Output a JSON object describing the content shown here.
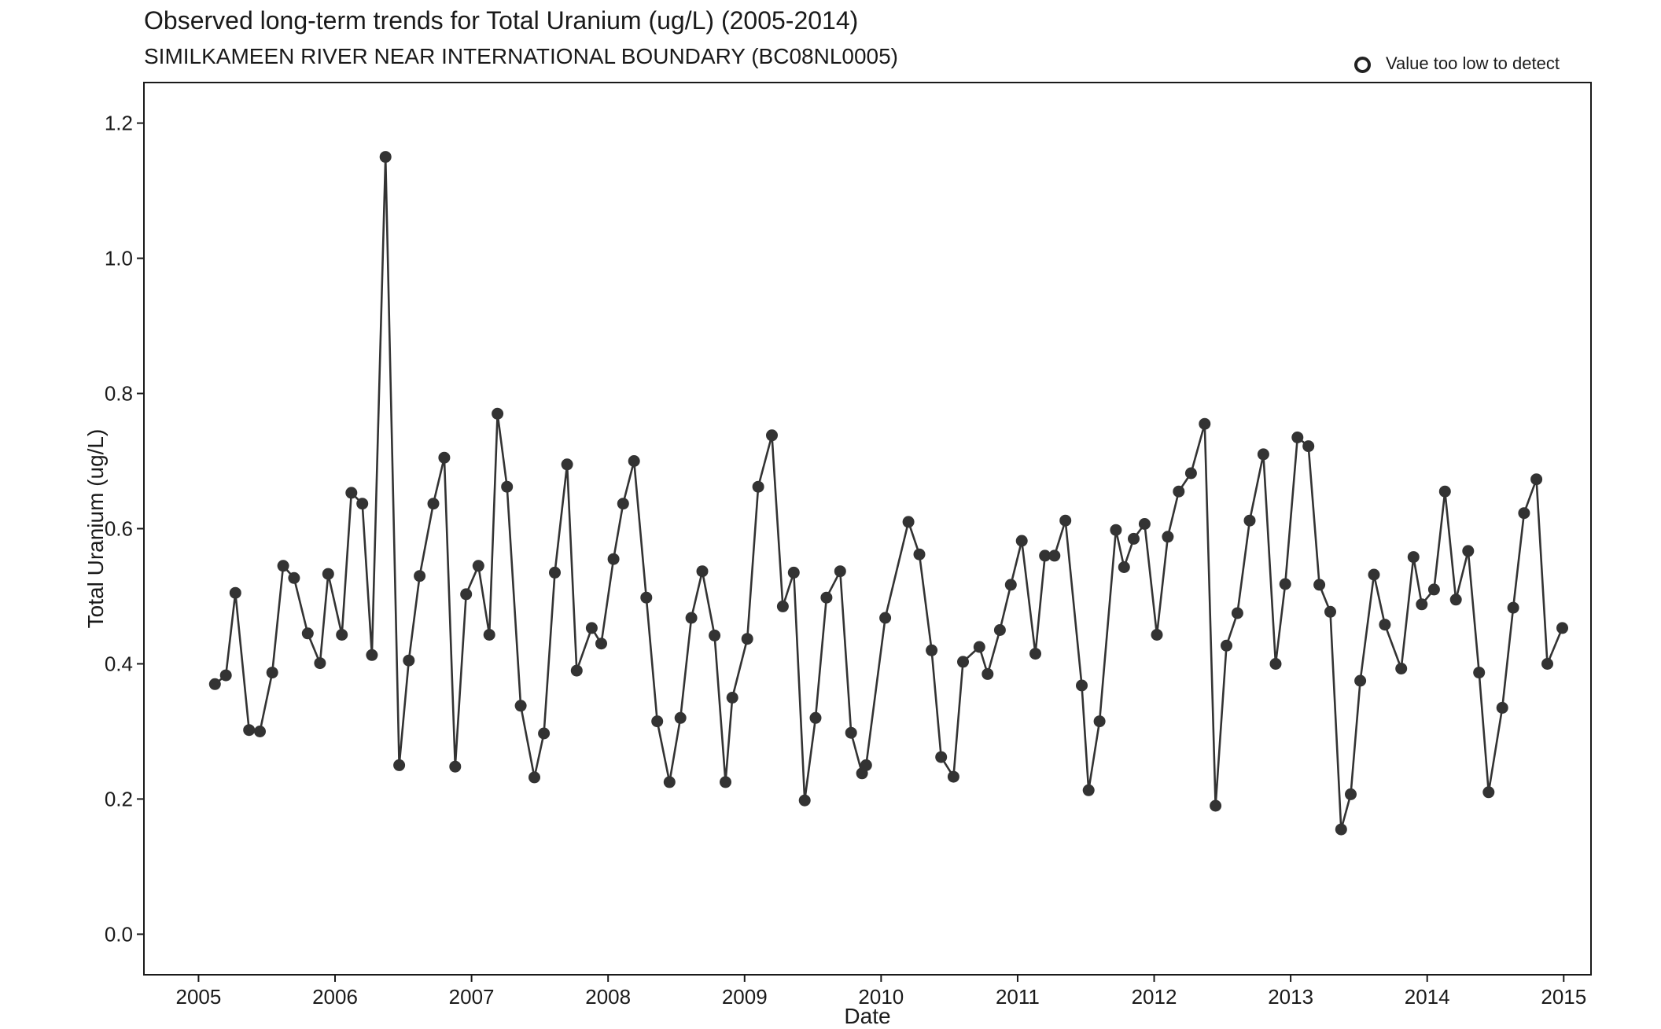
{
  "chart_data": {
    "type": "line",
    "title": "Observed long-term trends for Total Uranium (ug/L) (2005-2014)",
    "subtitle": "SIMILKAMEEN RIVER NEAR INTERNATIONAL BOUNDARY (BC08NL0005)",
    "xlabel": "Date",
    "ylabel": "Total Uranium (ug/L)",
    "xlim": [
      2004.6,
      2015.2
    ],
    "ylim": [
      -0.06,
      1.26
    ],
    "x_ticks": [
      2005,
      2006,
      2007,
      2008,
      2009,
      2010,
      2011,
      2012,
      2013,
      2014,
      2015
    ],
    "x_tick_labels": [
      "2005",
      "2006",
      "2007",
      "2008",
      "2009",
      "2010",
      "2011",
      "2012",
      "2013",
      "2014",
      "2015"
    ],
    "y_ticks": [
      0.0,
      0.2,
      0.4,
      0.6,
      0.8,
      1.0,
      1.2
    ],
    "y_tick_labels": [
      "0.0",
      "0.2",
      "0.4",
      "0.6",
      "0.8",
      "1.0",
      "1.2"
    ],
    "grid": false,
    "legend": {
      "position": "top-right",
      "entries": [
        {
          "label": "Value too low to detect",
          "marker": "open-circle"
        }
      ]
    },
    "colors": {
      "series": "#333333",
      "axis": "#1a1a1a"
    },
    "series": [
      {
        "x": [
          2005.12,
          2005.2,
          2005.27,
          2005.37,
          2005.45,
          2005.54,
          2005.62,
          2005.7,
          2005.8,
          2005.89,
          2005.95,
          2006.05,
          2006.12,
          2006.2,
          2006.27,
          2006.37,
          2006.47,
          2006.54,
          2006.62,
          2006.72,
          2006.8,
          2006.88,
          2006.96,
          2007.05,
          2007.13,
          2007.19,
          2007.26,
          2007.36,
          2007.46,
          2007.53,
          2007.61,
          2007.7,
          2007.77,
          2007.88,
          2007.95,
          2008.04,
          2008.11,
          2008.19,
          2008.28,
          2008.36,
          2008.45,
          2008.53,
          2008.61,
          2008.69,
          2008.78,
          2008.86,
          2008.91,
          2009.02,
          2009.1,
          2009.2,
          2009.28,
          2009.36,
          2009.44,
          2009.52,
          2009.6,
          2009.7,
          2009.78,
          2009.86,
          2009.89,
          2010.03,
          2010.2,
          2010.28,
          2010.37,
          2010.44,
          2010.53,
          2010.6,
          2010.72,
          2010.78,
          2010.87,
          2010.95,
          2011.03,
          2011.13,
          2011.2,
          2011.27,
          2011.35,
          2011.47,
          2011.52,
          2011.6,
          2011.72,
          2011.78,
          2011.85,
          2011.93,
          2012.02,
          2012.1,
          2012.18,
          2012.27,
          2012.37,
          2012.45,
          2012.53,
          2012.61,
          2012.7,
          2012.8,
          2012.89,
          2012.96,
          2013.05,
          2013.13,
          2013.21,
          2013.29,
          2013.37,
          2013.44,
          2013.51,
          2013.61,
          2013.69,
          2013.81,
          2013.9,
          2013.96,
          2014.05,
          2014.13,
          2014.21,
          2014.3,
          2014.38,
          2014.45,
          2014.55,
          2014.63,
          2014.71,
          2014.8,
          2014.88,
          2014.99
        ],
        "y": [
          0.37,
          0.383,
          0.505,
          0.302,
          0.3,
          0.387,
          0.545,
          0.527,
          0.445,
          0.401,
          0.533,
          0.443,
          0.653,
          0.637,
          0.413,
          1.15,
          0.25,
          0.405,
          0.53,
          0.637,
          0.705,
          0.248,
          0.503,
          0.545,
          0.443,
          0.77,
          0.662,
          0.338,
          0.232,
          0.297,
          0.535,
          0.695,
          0.39,
          0.453,
          0.43,
          0.555,
          0.637,
          0.7,
          0.498,
          0.315,
          0.225,
          0.32,
          0.468,
          0.537,
          0.442,
          0.225,
          0.35,
          0.437,
          0.662,
          0.738,
          0.485,
          0.535,
          0.198,
          0.32,
          0.498,
          0.537,
          0.298,
          0.238,
          0.25,
          0.468,
          0.61,
          0.562,
          0.42,
          0.262,
          0.233,
          0.403,
          0.425,
          0.385,
          0.45,
          0.517,
          0.582,
          0.415,
          0.56,
          0.56,
          0.612,
          0.368,
          0.213,
          0.315,
          0.598,
          0.543,
          0.585,
          0.607,
          0.443,
          0.588,
          0.655,
          0.682,
          0.755,
          0.19,
          0.427,
          0.475,
          0.612,
          0.71,
          0.4,
          0.518,
          0.735,
          0.722,
          0.517,
          0.477,
          0.155,
          0.207,
          0.375,
          0.532,
          0.458,
          0.393,
          0.558,
          0.488,
          0.51,
          0.655,
          0.495,
          0.567,
          0.387,
          0.21,
          0.335,
          0.483,
          0.623,
          0.673,
          0.4,
          0.453
        ]
      }
    ]
  }
}
